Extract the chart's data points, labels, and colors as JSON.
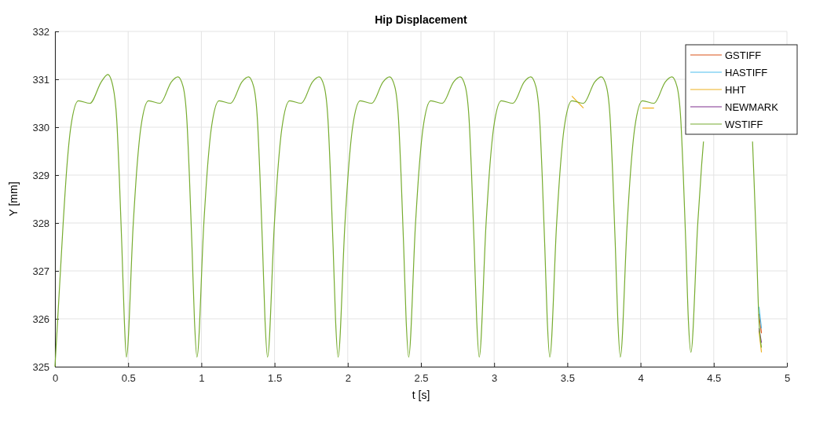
{
  "chart_data": {
    "type": "line",
    "title": "Hip Displacement",
    "xlabel": "t [s]",
    "ylabel": "Y [mm]",
    "x": [
      0,
      0.056,
      0.082,
      0.108,
      0.16,
      0.239,
      0.317,
      0.361,
      0.396,
      0.422,
      0.439,
      0.457,
      0.474,
      0.488,
      0.535,
      0.561,
      0.587,
      0.639,
      0.718,
      0.796,
      0.84,
      0.875,
      0.901,
      0.918,
      0.936,
      0.953,
      0.97,
      1.017,
      1.043,
      1.069,
      1.121,
      1.2,
      1.278,
      1.322,
      1.357,
      1.383,
      1.4,
      1.418,
      1.435,
      1.452,
      1.499,
      1.525,
      1.551,
      1.603,
      1.682,
      1.76,
      1.804,
      1.839,
      1.865,
      1.882,
      1.9,
      1.917,
      1.934,
      1.981,
      2.007,
      2.033,
      2.085,
      2.164,
      2.242,
      2.286,
      2.321,
      2.347,
      2.364,
      2.382,
      2.399,
      2.416,
      2.463,
      2.489,
      2.515,
      2.567,
      2.646,
      2.724,
      2.768,
      2.803,
      2.829,
      2.846,
      2.864,
      2.881,
      2.898,
      2.945,
      2.971,
      2.997,
      3.049,
      3.128,
      3.206,
      3.25,
      3.285,
      3.311,
      3.328,
      3.346,
      3.363,
      3.38,
      3.427,
      3.453,
      3.479,
      3.531,
      3.61,
      3.688,
      3.732,
      3.767,
      3.793,
      3.81,
      3.828,
      3.845,
      3.862,
      3.909,
      3.935,
      3.961,
      4.013,
      4.092,
      4.17,
      4.214,
      4.249,
      4.275,
      4.292,
      4.31,
      4.327,
      4.344,
      4.391,
      4.417,
      4.43,
      4.443,
      4.495,
      4.574,
      4.652,
      4.696,
      4.731,
      4.757,
      4.765,
      4.774,
      4.792,
      4.809,
      4.826
    ],
    "series": [
      {
        "name": "GSTIFF",
        "color": "#d95319",
        "x": [
          4.809,
          4.826
        ],
        "values": [
          326.1,
          325.7
        ]
      },
      {
        "name": "HASTIFF",
        "color": "#4dbeee",
        "x": [
          4.809,
          4.826
        ],
        "values": [
          326.25,
          325.8
        ]
      },
      {
        "name": "HHT",
        "color": "#edb120",
        "x": [
          3.531,
          3.61,
          3.8,
          4.013,
          4.092,
          4.5,
          4.809,
          4.826
        ],
        "values": [
          330.65,
          330.4,
          null,
          330.4,
          330.4,
          null,
          325.75,
          325.3
        ]
      },
      {
        "name": "NEWMARK",
        "color": "#7e2f8e",
        "x": [
          4.809,
          4.826
        ],
        "values": [
          325.8,
          325.5
        ]
      },
      {
        "name": "WSTIFF",
        "color": "#77ac30",
        "values": [
          325,
          328,
          329.2,
          330,
          330.55,
          330.5,
          330.95,
          331.1,
          330.85,
          330.15,
          329,
          327.5,
          325.95,
          325.2,
          328,
          329.2,
          330,
          330.55,
          330.5,
          330.95,
          331.05,
          330.85,
          330.15,
          329,
          327.5,
          325.95,
          325.2,
          328,
          329.2,
          330,
          330.55,
          330.5,
          330.95,
          331.05,
          330.85,
          330.15,
          329,
          327.5,
          325.95,
          325.2,
          328,
          329.2,
          330,
          330.55,
          330.5,
          330.95,
          331.05,
          330.85,
          330.15,
          329,
          327.5,
          325.95,
          325.2,
          328,
          329.2,
          330,
          330.55,
          330.5,
          330.95,
          331.05,
          330.85,
          330.15,
          329,
          327.5,
          325.95,
          325.2,
          328,
          329.2,
          330,
          330.55,
          330.5,
          330.95,
          331.05,
          330.85,
          330.15,
          329,
          327.5,
          325.95,
          325.2,
          328,
          329.2,
          330,
          330.55,
          330.5,
          330.95,
          331.05,
          330.85,
          330.15,
          329,
          327.5,
          325.95,
          325.2,
          328,
          329.2,
          330,
          330.55,
          330.5,
          330.95,
          331.05,
          330.85,
          330.15,
          329,
          327.5,
          325.95,
          325.2,
          328,
          329.2,
          330,
          330.55,
          330.5,
          330.95,
          331.05,
          330.85,
          330.15,
          329,
          327.5,
          325.95,
          325.3,
          328,
          329.2,
          329.7,
          null,
          null,
          null,
          null,
          null,
          null,
          null,
          329.7,
          329,
          327.5,
          325.95,
          325.4
        ]
      }
    ],
    "xlim": [
      0,
      5
    ],
    "xticks": [
      0,
      0.5,
      1,
      1.5,
      2,
      2.5,
      3,
      3.5,
      4,
      4.5,
      5
    ],
    "ylim": [
      325,
      332
    ],
    "yticks": [
      325,
      326,
      327,
      328,
      329,
      330,
      331,
      332
    ],
    "grid": true,
    "legend": "top right"
  }
}
